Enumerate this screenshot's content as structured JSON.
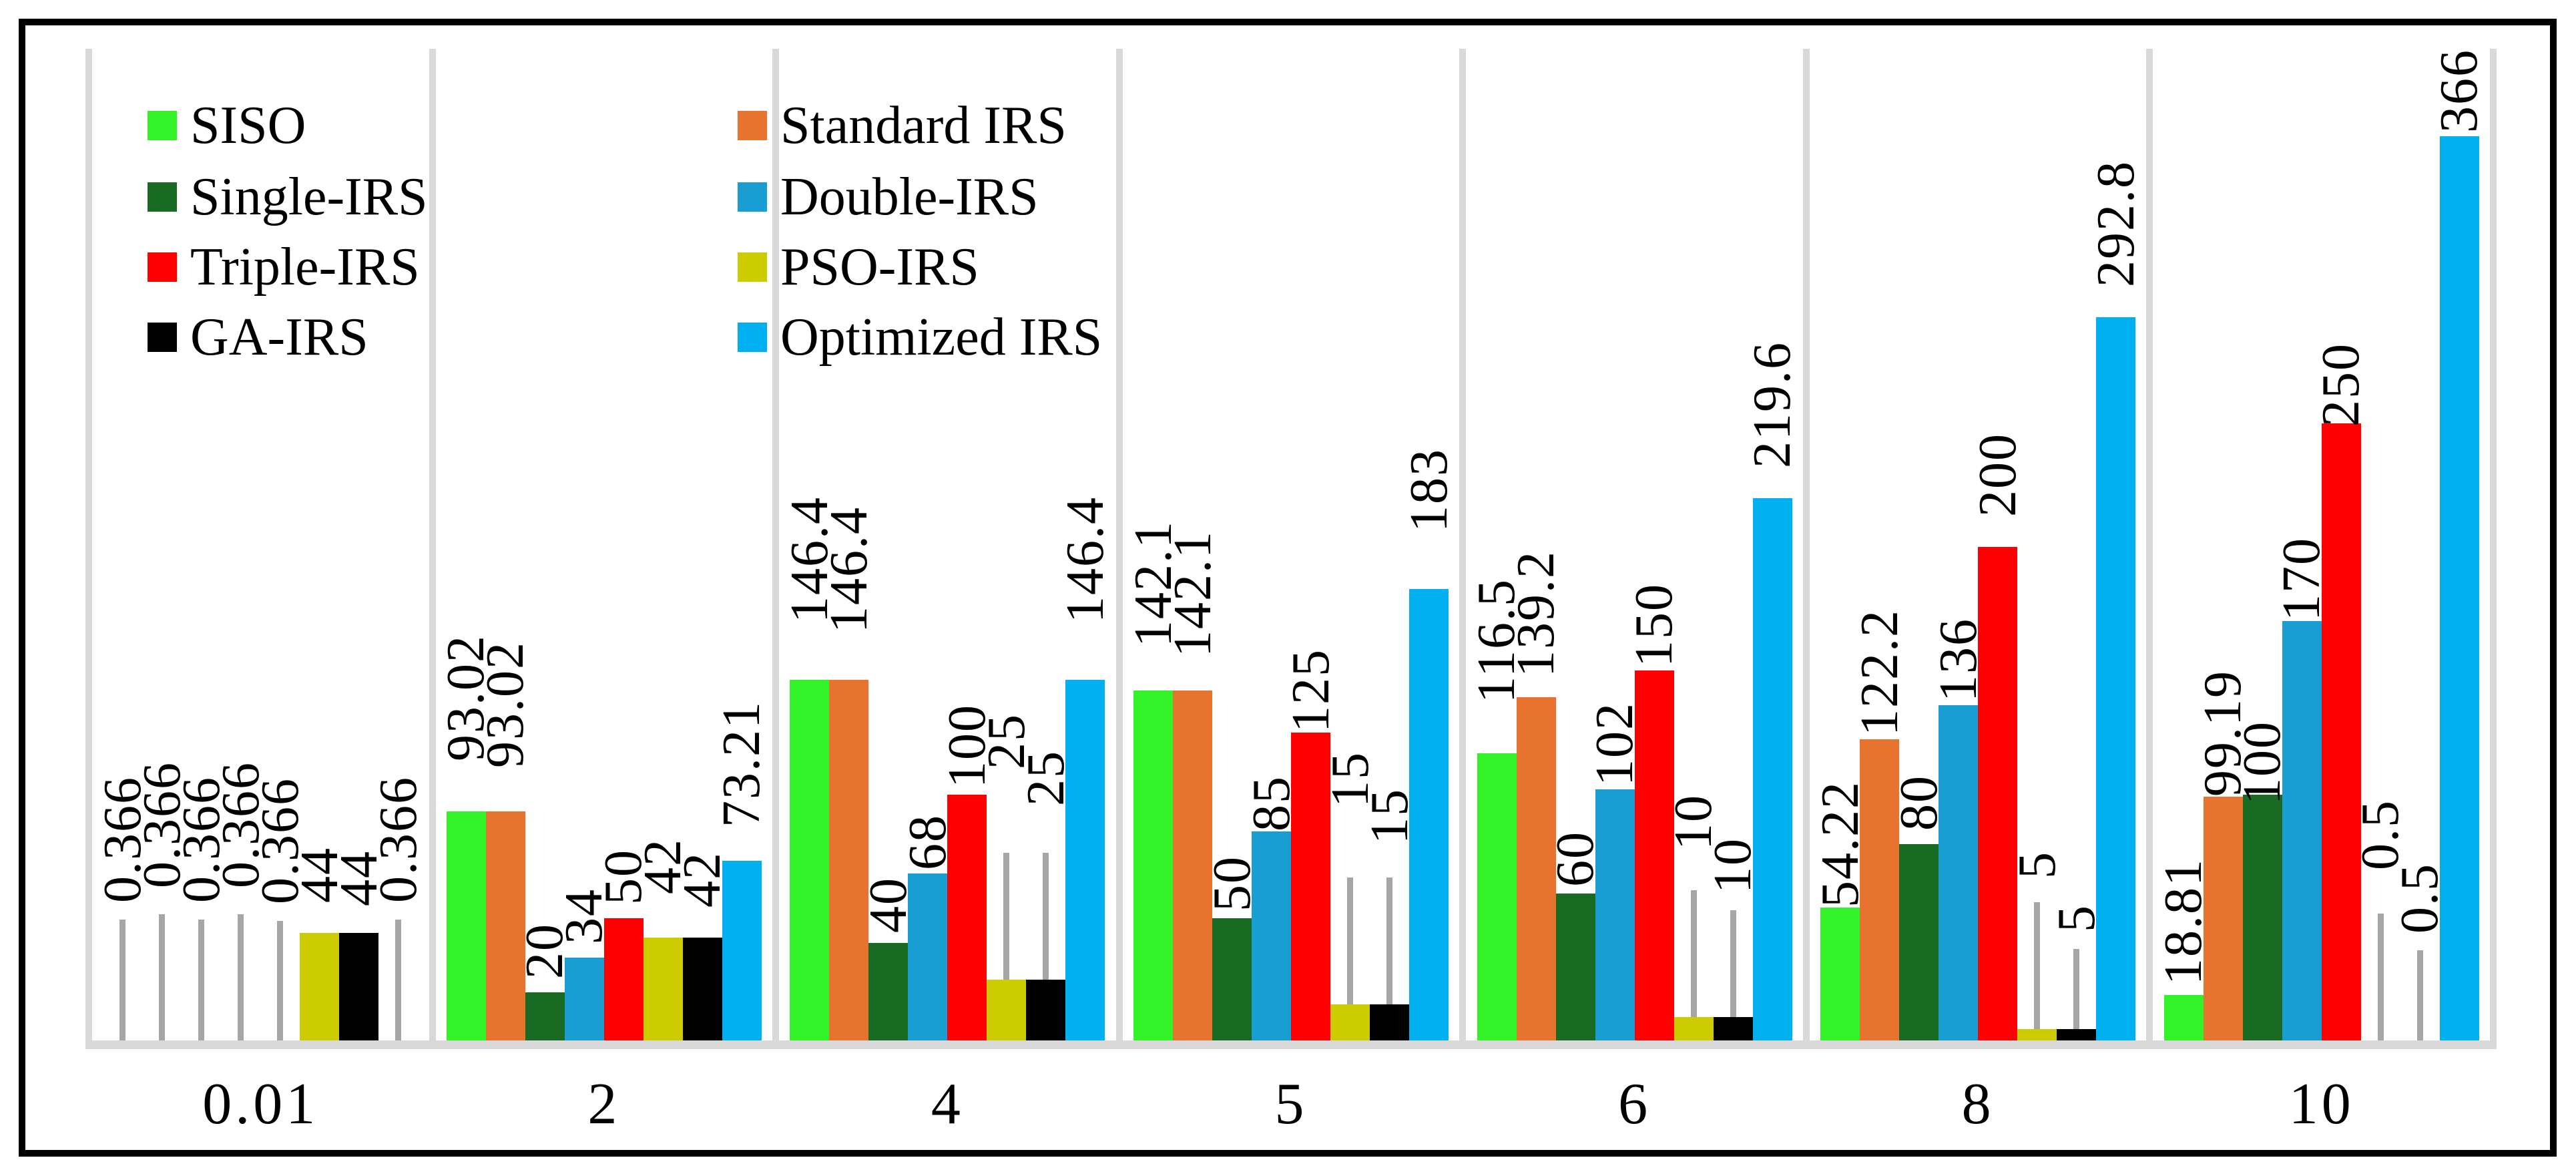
{
  "chart_data": {
    "type": "bar",
    "title": "",
    "xlabel": "",
    "ylabel": "",
    "categories": [
      "0.01",
      "2",
      "4",
      "5",
      "6",
      "8",
      "10"
    ],
    "ylim": [
      0,
      402
    ],
    "grid": "vertical-category-dividers-only",
    "axis_line_color": "#D9D9D9",
    "divider_color": "#D9D9D9",
    "leader_line_color": "#A6A6A6",
    "label_color": "#000000",
    "series": [
      {
        "name": "SISO",
        "color": "#33F227",
        "values": [
          0.366,
          93.02,
          146.4,
          142.1,
          116.5,
          54.22,
          18.81
        ],
        "labels": [
          "0.366",
          "93.02",
          "146.4",
          "142.1",
          "116.5",
          "54.22",
          "18.81"
        ]
      },
      {
        "name": "Standard IRS",
        "color": "#E8732E",
        "values": [
          0.366,
          93.02,
          146.4,
          142.1,
          139.2,
          122.2,
          99.19
        ],
        "labels": [
          "0.366",
          "93.02",
          "146.4",
          "142.1",
          "139.2",
          "122.2",
          "99.19"
        ]
      },
      {
        "name": "Single-IRS",
        "color": "#196B24",
        "values": [
          0.366,
          20,
          40,
          50,
          60,
          80,
          100
        ],
        "labels": [
          "0.366",
          "20",
          "40",
          "50",
          "60",
          "80",
          "100"
        ]
      },
      {
        "name": "Double-IRS",
        "color": "#199ED4",
        "values": [
          0.366,
          34,
          68,
          85,
          102,
          136,
          170
        ],
        "labels": [
          "0.366",
          "34",
          "68",
          "85",
          "102",
          "136",
          "170"
        ]
      },
      {
        "name": "Triple-IRS",
        "color": "#FF0000",
        "values": [
          0.366,
          50,
          100,
          125,
          150,
          200,
          250
        ],
        "labels": [
          "0.366",
          "50",
          "100",
          "125",
          "150",
          "200",
          "250"
        ]
      },
      {
        "name": "PSO-IRS",
        "color": "#CCCC00",
        "values": [
          44,
          42,
          25,
          15,
          10,
          5,
          0.5
        ],
        "labels": [
          "44",
          "42",
          "25",
          "15",
          "10",
          "5",
          "0.5"
        ]
      },
      {
        "name": "GA-IRS",
        "color": "#000000",
        "values": [
          44,
          42,
          25,
          15,
          10,
          5,
          0.5
        ],
        "labels": [
          "44",
          "42",
          "25",
          "15",
          "10",
          "5",
          "0.5"
        ]
      },
      {
        "name": "Optimized IRS",
        "color": "#00B0F0",
        "values": [
          0.366,
          73.21,
          146.4,
          183,
          219.6,
          292.8,
          366
        ],
        "labels": [
          "0.366",
          "73.21",
          "146.4",
          "183",
          "219.6",
          "292.8",
          "366"
        ]
      }
    ],
    "label_dy": [
      [
        162,
        184,
        162,
        184,
        160,
        0,
        -5,
        162
      ],
      [
        30,
        20,
        -25,
        -25,
        -25,
        20,
        0,
        5
      ],
      [
        40,
        25,
        -30,
        -40,
        -35,
        270,
        215,
        40
      ],
      [
        20,
        5,
        -35,
        -45,
        -45,
        250,
        195,
        40
      ],
      [
        30,
        -15,
        -35,
        -40,
        -40,
        205,
        140,
        0
      ],
      [
        -45,
        -40,
        -25,
        -40,
        0,
        180,
        100,
        0
      ],
      [
        -30,
        -45,
        -60,
        -45,
        -50,
        210,
        115,
        -40
      ]
    ],
    "legend": {
      "position": "top-left-inside",
      "columns": [
        [
          "SISO",
          "Single-IRS",
          "Triple-IRS",
          "GA-IRS"
        ],
        [
          "Standard IRS",
          "Double-IRS",
          "PSO-IRS",
          "Optimized IRS"
        ]
      ]
    }
  }
}
